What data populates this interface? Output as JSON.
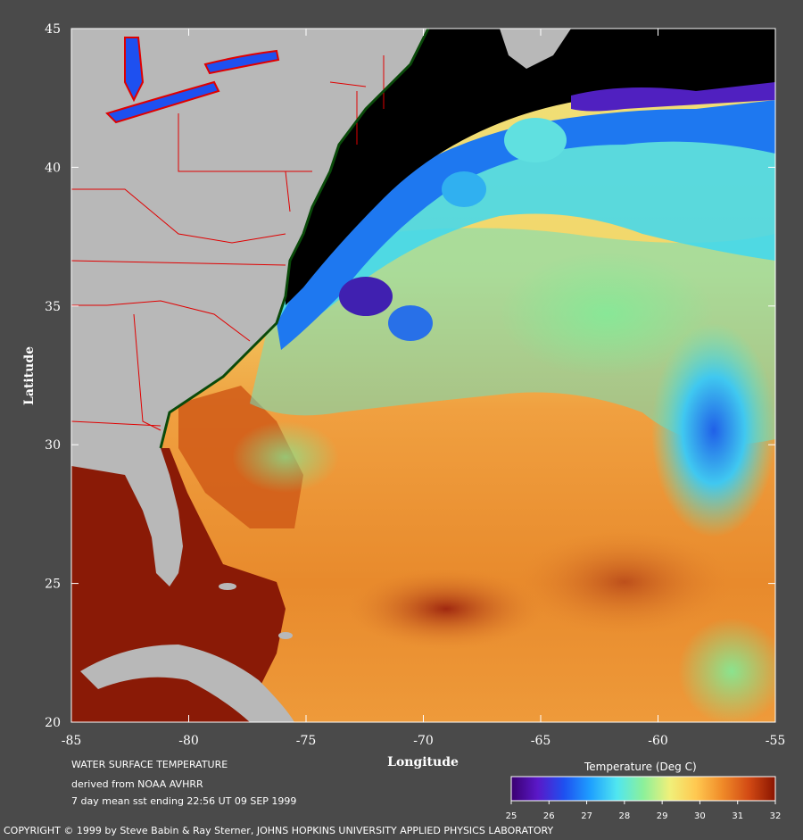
{
  "map": {
    "title": "WATER SURFACE TEMPERATURE",
    "subtitle": "derived from NOAA AVHRR",
    "period": "7 day mean sst ending 22:56 UT 09 SEP 1999",
    "xlabel": "Longitude",
    "ylabel": "Latitude",
    "x_ticks": [
      "-85",
      "-80",
      "-75",
      "-70",
      "-65",
      "-60",
      "-55"
    ],
    "y_ticks": [
      "45",
      "40",
      "35",
      "30",
      "25",
      "20"
    ],
    "lon_range": [
      -85,
      -55
    ],
    "lat_range": [
      20,
      45
    ],
    "land_color": "#b4b4b4",
    "boundary_color": "#e00000",
    "cold_water_color": "#000000"
  },
  "colorbar": {
    "title": "Temperature (Deg C)",
    "ticks": [
      "25",
      "26",
      "27",
      "28",
      "29",
      "30",
      "31",
      "32"
    ],
    "range": [
      25,
      32
    ],
    "colors": [
      "#3a0070",
      "#5a18c8",
      "#1e50f0",
      "#1ea0ff",
      "#50e6f0",
      "#8cf09a",
      "#f0f07a",
      "#ffc850",
      "#f08a28",
      "#d24a14",
      "#8a1400"
    ]
  },
  "copyright": "COPYRIGHT © 1999 by Steve Babin & Ray Sterner, JOHNS HOPKINS UNIVERSITY APPLIED PHYSICS LABORATORY"
}
